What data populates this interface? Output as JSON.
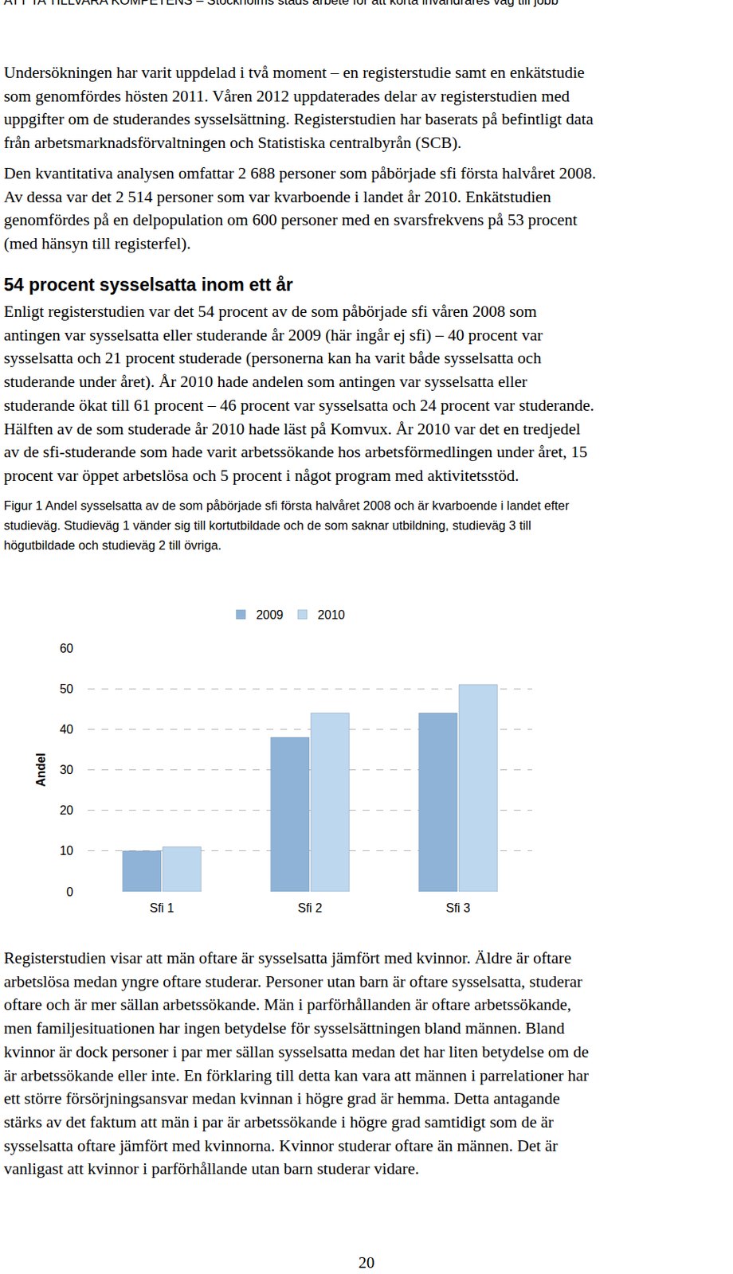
{
  "header": "ATT TA TILLVARA KOMPETENS – Stockholms stads arbete för att korta invandrares väg till jobb",
  "intro_paragraphs": [
    [
      "Undersökningen har varit uppdelad i två moment – en registerstudie samt en enkätstudie",
      "som genomfördes hösten 2011. Våren 2012 uppdaterades delar av registerstudien med",
      "uppgifter om de studerandes sysselsättning. Registerstudien har baserats på befintligt data",
      "från arbetsmarknadsförvaltningen och Statistiska centralbyrån (SCB)."
    ],
    [
      "Den kvantitativa analysen omfattar 2 688 personer som påbörjade sfi första halvåret 2008.",
      "Av dessa var det 2 514 personer som var kvarboende i landet år 2010. Enkätstudien",
      "genomfördes på en delpopulation om 600 personer med en svarsfrekvens på 53 procent",
      "(med hänsyn till registerfel)."
    ]
  ],
  "heading": "54 procent sysselsatta inom ett år",
  "body_paragraph": [
    "Enligt registerstudien var det 54 procent av de som påbörjade sfi våren 2008 som",
    "antingen var sysselsatta eller studerande år 2009 (här ingår ej sfi) – 40 procent var",
    "sysselsatta och 21 procent studerade (personerna kan ha varit både sysselsatta och",
    "studerande under året). År 2010 hade andelen som antingen var sysselsatta eller",
    "studerande ökat till 61 procent – 46 procent var sysselsatta och 24 procent var studerande.",
    "Hälften av de som studerade år 2010 hade läst på Komvux. År 2010 var det en tredjedel",
    "av de sfi-studerande som hade varit arbetssökande hos arbetsförmedlingen under året, 15",
    "procent var öppet arbetslösa och 5 procent i något program med aktivitetsstöd."
  ],
  "figure_caption": [
    "Figur 1 Andel sysselsatta av de som påbörjade sfi första halvåret 2008 och är kvarboende i landet efter",
    "studieväg. Studieväg 1 vänder sig till kortutbildade och de som saknar utbildning, studieväg 3 till",
    "högutbildade och studieväg 2 till övriga."
  ],
  "chart_data": {
    "type": "bar",
    "y_label": "Andel",
    "categories": [
      "Sfi 1",
      "Sfi 2",
      "Sfi 3"
    ],
    "series": [
      {
        "name": "2009",
        "color": "#8fb3d7",
        "values": [
          10,
          38,
          44
        ]
      },
      {
        "name": "2010",
        "color": "#bdd7ee",
        "values": [
          11,
          44,
          51
        ]
      }
    ],
    "ylim": [
      0,
      60
    ],
    "yticks": [
      0,
      10,
      20,
      30,
      40,
      50,
      60
    ],
    "grid": true,
    "legend": "top"
  },
  "closing_paragraph": [
    "Registerstudien visar att män oftare är sysselsatta jämfört med kvinnor. Äldre är oftare",
    "arbetslösa medan yngre oftare studerar. Personer utan barn är oftare sysselsatta, studerar",
    "oftare och är mer sällan arbetssökande. Män i parförhållanden är oftare arbetssökande,",
    "men familjesituationen har ingen betydelse för sysselsättningen bland männen. Bland",
    "kvinnor är dock personer i par mer sällan sysselsatta medan det har liten betydelse om de",
    "är arbetssökande eller inte. En förklaring till detta kan vara att männen i parrelationer har",
    "ett större försörjningsansvar medan kvinnan i högre grad är hemma. Detta antagande",
    "stärks av det faktum att män i par är arbetssökande i högre grad samtidigt som de är",
    "sysselsatta oftare jämfört med kvinnorna. Kvinnor studerar oftare än männen. Det är",
    "vanligast att kvinnor i parförhållande utan barn studerar vidare."
  ],
  "page_number": 20
}
